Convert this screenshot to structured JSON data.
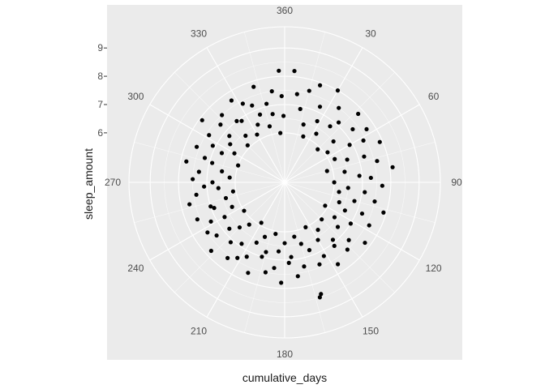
{
  "chart_data": {
    "type": "scatter",
    "coord": "polar",
    "xlabel": "cumulative_days",
    "ylabel": "sleep_amount",
    "x_ticks": [
      30,
      60,
      90,
      120,
      150,
      180,
      210,
      240,
      270,
      300,
      330,
      360
    ],
    "y_ticks": [
      6,
      7,
      8,
      9
    ],
    "xlim": [
      0,
      360
    ],
    "ylim": [
      4.25,
      9.75
    ],
    "grid": true,
    "points": [
      {
        "x": 5,
        "y": 8.2
      },
      {
        "x": 8,
        "y": 7.4
      },
      {
        "x": 12,
        "y": 6.9
      },
      {
        "x": 15,
        "y": 7.6
      },
      {
        "x": 18,
        "y": 6.4
      },
      {
        "x": 20,
        "y": 7.9
      },
      {
        "x": 22,
        "y": 6.0
      },
      {
        "x": 25,
        "y": 7.2
      },
      {
        "x": 28,
        "y": 6.7
      },
      {
        "x": 30,
        "y": 8.0
      },
      {
        "x": 33,
        "y": 6.3
      },
      {
        "x": 36,
        "y": 7.5
      },
      {
        "x": 39,
        "y": 6.8
      },
      {
        "x": 42,
        "y": 7.1
      },
      {
        "x": 45,
        "y": 5.9
      },
      {
        "x": 47,
        "y": 7.8
      },
      {
        "x": 50,
        "y": 6.5
      },
      {
        "x": 52,
        "y": 7.3
      },
      {
        "x": 55,
        "y": 6.1
      },
      {
        "x": 57,
        "y": 7.7
      },
      {
        "x": 60,
        "y": 6.9
      },
      {
        "x": 62,
        "y": 7.4
      },
      {
        "x": 65,
        "y": 6.2
      },
      {
        "x": 67,
        "y": 7.9
      },
      {
        "x": 70,
        "y": 6.6
      },
      {
        "x": 72,
        "y": 7.2
      },
      {
        "x": 75,
        "y": 5.8
      },
      {
        "x": 77,
        "y": 7.6
      },
      {
        "x": 80,
        "y": 6.4
      },
      {
        "x": 82,
        "y": 8.1
      },
      {
        "x": 85,
        "y": 6.9
      },
      {
        "x": 87,
        "y": 7.3
      },
      {
        "x": 90,
        "y": 6.0
      },
      {
        "x": 92,
        "y": 7.7
      },
      {
        "x": 95,
        "y": 6.5
      },
      {
        "x": 97,
        "y": 7.1
      },
      {
        "x": 100,
        "y": 6.2
      },
      {
        "x": 102,
        "y": 7.5
      },
      {
        "x": 105,
        "y": 6.8
      },
      {
        "x": 107,
        "y": 7.9
      },
      {
        "x": 110,
        "y": 6.3
      },
      {
        "x": 112,
        "y": 7.2
      },
      {
        "x": 115,
        "y": 6.6
      },
      {
        "x": 117,
        "y": 7.6
      },
      {
        "x": 120,
        "y": 5.9
      },
      {
        "x": 122,
        "y": 7.0
      },
      {
        "x": 125,
        "y": 6.4
      },
      {
        "x": 127,
        "y": 7.8
      },
      {
        "x": 130,
        "y": 6.7
      },
      {
        "x": 132,
        "y": 7.3
      },
      {
        "x": 135,
        "y": 6.1
      },
      {
        "x": 137,
        "y": 7.5
      },
      {
        "x": 140,
        "y": 6.9
      },
      {
        "x": 142,
        "y": 7.1
      },
      {
        "x": 145,
        "y": 6.3
      },
      {
        "x": 147,
        "y": 7.7
      },
      {
        "x": 150,
        "y": 6.6
      },
      {
        "x": 152,
        "y": 7.2
      },
      {
        "x": 155,
        "y": 6.0
      },
      {
        "x": 157,
        "y": 7.4
      },
      {
        "x": 160,
        "y": 6.8
      },
      {
        "x": 162,
        "y": 8.4
      },
      {
        "x": 163,
        "y": 8.5
      },
      {
        "x": 165,
        "y": 6.5
      },
      {
        "x": 167,
        "y": 7.3
      },
      {
        "x": 170,
        "y": 6.2
      },
      {
        "x": 172,
        "y": 7.6
      },
      {
        "x": 175,
        "y": 6.9
      },
      {
        "x": 177,
        "y": 7.1
      },
      {
        "x": 180,
        "y": 6.4
      },
      {
        "x": 182,
        "y": 7.8
      },
      {
        "x": 185,
        "y": 6.7
      },
      {
        "x": 187,
        "y": 7.3
      },
      {
        "x": 190,
        "y": 6.1
      },
      {
        "x": 192,
        "y": 7.5
      },
      {
        "x": 195,
        "y": 6.8
      },
      {
        "x": 197,
        "y": 7.0
      },
      {
        "x": 200,
        "y": 6.3
      },
      {
        "x": 202,
        "y": 7.7
      },
      {
        "x": 205,
        "y": 6.6
      },
      {
        "x": 207,
        "y": 7.2
      },
      {
        "x": 210,
        "y": 5.9
      },
      {
        "x": 212,
        "y": 7.4
      },
      {
        "x": 215,
        "y": 6.9
      },
      {
        "x": 217,
        "y": 7.6
      },
      {
        "x": 220,
        "y": 6.2
      },
      {
        "x": 222,
        "y": 7.1
      },
      {
        "x": 225,
        "y": 6.5
      },
      {
        "x": 227,
        "y": 7.8
      },
      {
        "x": 230,
        "y": 6.8
      },
      {
        "x": 232,
        "y": 7.3
      },
      {
        "x": 235,
        "y": 6.0
      },
      {
        "x": 237,
        "y": 7.5
      },
      {
        "x": 240,
        "y": 6.7
      },
      {
        "x": 242,
        "y": 7.2
      },
      {
        "x": 245,
        "y": 6.3
      },
      {
        "x": 247,
        "y": 7.6
      },
      {
        "x": 250,
        "y": 6.9
      },
      {
        "x": 252,
        "y": 7.0
      },
      {
        "x": 255,
        "y": 6.4
      },
      {
        "x": 257,
        "y": 7.7
      },
      {
        "x": 260,
        "y": 6.1
      },
      {
        "x": 262,
        "y": 7.4
      },
      {
        "x": 265,
        "y": 6.6
      },
      {
        "x": 267,
        "y": 7.1
      },
      {
        "x": 270,
        "y": 6.8
      },
      {
        "x": 272,
        "y": 7.5
      },
      {
        "x": 275,
        "y": 6.2
      },
      {
        "x": 277,
        "y": 7.3
      },
      {
        "x": 280,
        "y": 6.5
      },
      {
        "x": 282,
        "y": 7.8
      },
      {
        "x": 285,
        "y": 6.9
      },
      {
        "x": 287,
        "y": 7.2
      },
      {
        "x": 290,
        "y": 6.0
      },
      {
        "x": 292,
        "y": 7.6
      },
      {
        "x": 295,
        "y": 6.7
      },
      {
        "x": 297,
        "y": 7.1
      },
      {
        "x": 300,
        "y": 6.3
      },
      {
        "x": 302,
        "y": 7.4
      },
      {
        "x": 305,
        "y": 6.6
      },
      {
        "x": 307,
        "y": 7.9
      },
      {
        "x": 310,
        "y": 6.8
      },
      {
        "x": 312,
        "y": 7.3
      },
      {
        "x": 315,
        "y": 6.1
      },
      {
        "x": 317,
        "y": 7.5
      },
      {
        "x": 320,
        "y": 6.4
      },
      {
        "x": 322,
        "y": 7.0
      },
      {
        "x": 325,
        "y": 6.9
      },
      {
        "x": 327,
        "y": 7.7
      },
      {
        "x": 330,
        "y": 6.2
      },
      {
        "x": 332,
        "y": 7.4
      },
      {
        "x": 335,
        "y": 6.5
      },
      {
        "x": 337,
        "y": 7.2
      },
      {
        "x": 340,
        "y": 6.8
      },
      {
        "x": 342,
        "y": 7.8
      },
      {
        "x": 345,
        "y": 6.3
      },
      {
        "x": 347,
        "y": 7.1
      },
      {
        "x": 350,
        "y": 6.7
      },
      {
        "x": 352,
        "y": 7.5
      },
      {
        "x": 355,
        "y": 6.0
      },
      {
        "x": 357,
        "y": 8.2
      },
      {
        "x": 358,
        "y": 7.3
      },
      {
        "x": 359,
        "y": 6.6
      }
    ]
  }
}
